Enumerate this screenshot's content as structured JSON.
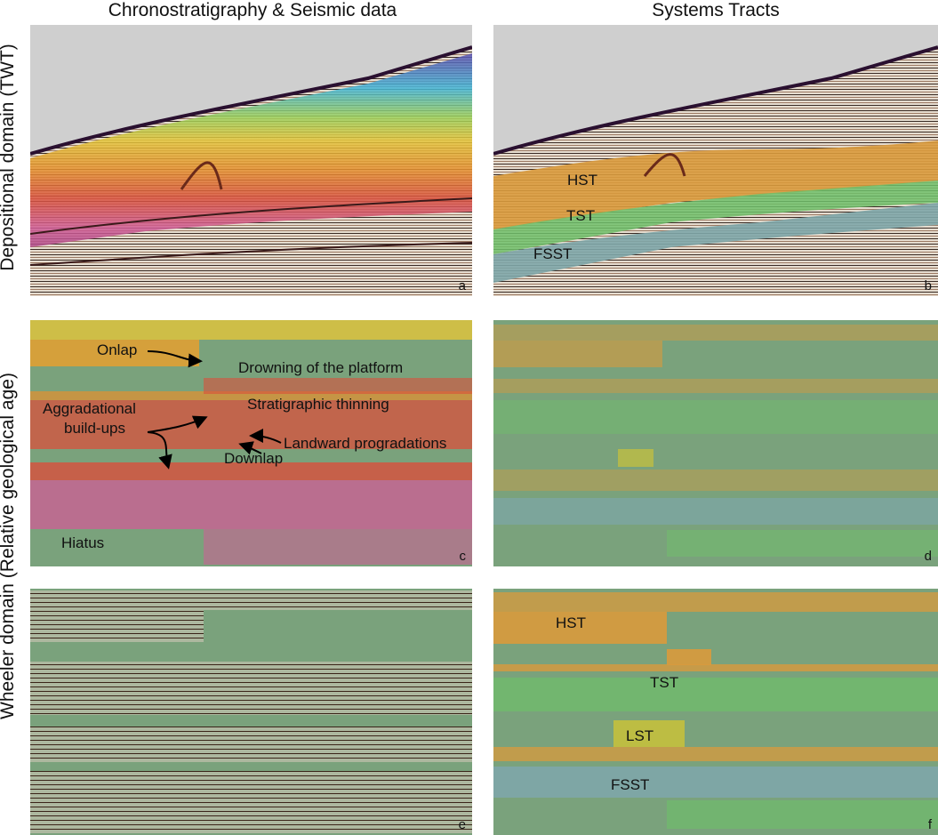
{
  "headers": {
    "left": "Chronostratigraphy & Seismic data",
    "right": "Systems Tracts"
  },
  "row_labels": {
    "top": "Depositional domain (TWT)",
    "bottom": "Wheeler domain (Relative geological age)"
  },
  "panels": {
    "a": {
      "label": "a"
    },
    "b": {
      "label": "b",
      "tracts": [
        "HST",
        "TST",
        "FSST"
      ]
    },
    "c": {
      "label": "c",
      "annotations": {
        "onlap": "Onlap",
        "drowning": "Drowning of the platform",
        "thinning": "Stratigraphic thinning",
        "aggradational_1": "Aggradational",
        "aggradational_2": "build-ups",
        "landward": "Landward progradations",
        "downlap": "Downlap",
        "hiatus": "Hiatus"
      }
    },
    "d": {
      "label": "d"
    },
    "e": {
      "label": "e"
    },
    "f": {
      "label": "f",
      "tracts": [
        "HST",
        "TST",
        "LST",
        "FSST"
      ]
    }
  },
  "colors": {
    "sky": "#cfcfcf",
    "wheeler_bg": "#7aa27c",
    "hst": "#d99a3c",
    "tst": "#6fbf6a",
    "lst": "#c9c23a",
    "fsst": "#7ea6a8",
    "chrono_red": "#d9503c",
    "chrono_pink": "#d05c95",
    "chrono_yellow": "#e3c53a"
  }
}
